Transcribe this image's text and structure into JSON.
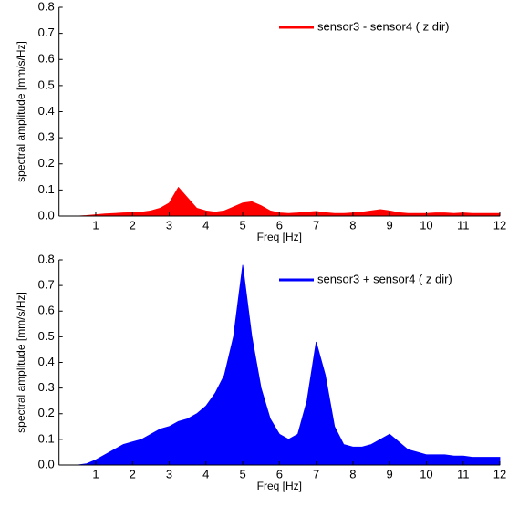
{
  "chart_data": [
    {
      "type": "area",
      "xlabel": "Freq [Hz]",
      "ylabel": "spectral amplitude [mm/s/Hz]",
      "legend": "upper right",
      "x": [
        0,
        0.25,
        0.5,
        0.75,
        1,
        1.25,
        1.5,
        1.75,
        2,
        2.25,
        2.5,
        2.75,
        3,
        3.25,
        3.5,
        3.75,
        4,
        4.25,
        4.5,
        4.75,
        5,
        5.25,
        5.5,
        5.75,
        6,
        6.25,
        6.5,
        6.75,
        7,
        7.25,
        7.5,
        7.75,
        8,
        8.25,
        8.5,
        8.75,
        9,
        9.25,
        9.5,
        9.75,
        10,
        10.25,
        10.5,
        10.75,
        11,
        11.25,
        11.5,
        11.75,
        12
      ],
      "series": [
        {
          "name": "sensor3 - sensor4 ( z dir)",
          "color": "#ff0000",
          "values": [
            0,
            0,
            0,
            0.002,
            0.005,
            0.008,
            0.01,
            0.012,
            0.013,
            0.015,
            0.02,
            0.03,
            0.05,
            0.11,
            0.07,
            0.03,
            0.02,
            0.015,
            0.02,
            0.035,
            0.05,
            0.055,
            0.04,
            0.02,
            0.012,
            0.01,
            0.012,
            0.015,
            0.018,
            0.013,
            0.01,
            0.01,
            0.012,
            0.015,
            0.02,
            0.025,
            0.02,
            0.013,
            0.01,
            0.01,
            0.01,
            0.012,
            0.012,
            0.01,
            0.012,
            0.01,
            0.01,
            0.01,
            0.01
          ]
        }
      ],
      "xlim": [
        0,
        12
      ],
      "xticks": [
        1,
        2,
        3,
        4,
        5,
        6,
        7,
        8,
        9,
        10,
        11,
        12
      ],
      "ylim": [
        0,
        0.8
      ],
      "yticks": [
        {
          "value": 0,
          "label": "0.0"
        },
        0.1,
        0.2,
        0.3,
        0.4,
        0.5,
        0.6,
        0.7,
        0.8
      ]
    },
    {
      "type": "area",
      "xlabel": "Freq [Hz]",
      "ylabel": "spectral amplitude [mm/s/Hz]",
      "legend": "upper right",
      "x": [
        0,
        0.25,
        0.5,
        0.75,
        1,
        1.25,
        1.5,
        1.75,
        2,
        2.25,
        2.5,
        2.75,
        3,
        3.25,
        3.5,
        3.75,
        4,
        4.25,
        4.5,
        4.75,
        5,
        5.25,
        5.5,
        5.75,
        6,
        6.25,
        6.5,
        6.75,
        7,
        7.25,
        7.5,
        7.75,
        8,
        8.25,
        8.5,
        8.75,
        9,
        9.25,
        9.5,
        9.75,
        10,
        10.25,
        10.5,
        10.75,
        11,
        11.25,
        11.5,
        11.75,
        12
      ],
      "series": [
        {
          "name": "sensor3 + sensor4 ( z dir)",
          "color": "#0000ff",
          "values": [
            0,
            0,
            0,
            0.005,
            0.02,
            0.04,
            0.06,
            0.08,
            0.09,
            0.1,
            0.12,
            0.14,
            0.15,
            0.17,
            0.18,
            0.2,
            0.23,
            0.28,
            0.35,
            0.5,
            0.78,
            0.5,
            0.3,
            0.18,
            0.12,
            0.1,
            0.12,
            0.25,
            0.48,
            0.35,
            0.15,
            0.08,
            0.07,
            0.07,
            0.08,
            0.1,
            0.12,
            0.09,
            0.06,
            0.05,
            0.04,
            0.04,
            0.04,
            0.035,
            0.035,
            0.03,
            0.03,
            0.03,
            0.03
          ]
        }
      ],
      "xlim": [
        0,
        12
      ],
      "xticks": [
        1,
        2,
        3,
        4,
        5,
        6,
        7,
        8,
        9,
        10,
        11,
        12
      ],
      "ylim": [
        0,
        0.8
      ],
      "yticks": [
        {
          "value": 0,
          "label": "0.0"
        },
        0.1,
        0.2,
        0.3,
        0.4,
        0.5,
        0.6,
        0.7,
        0.8
      ]
    }
  ]
}
